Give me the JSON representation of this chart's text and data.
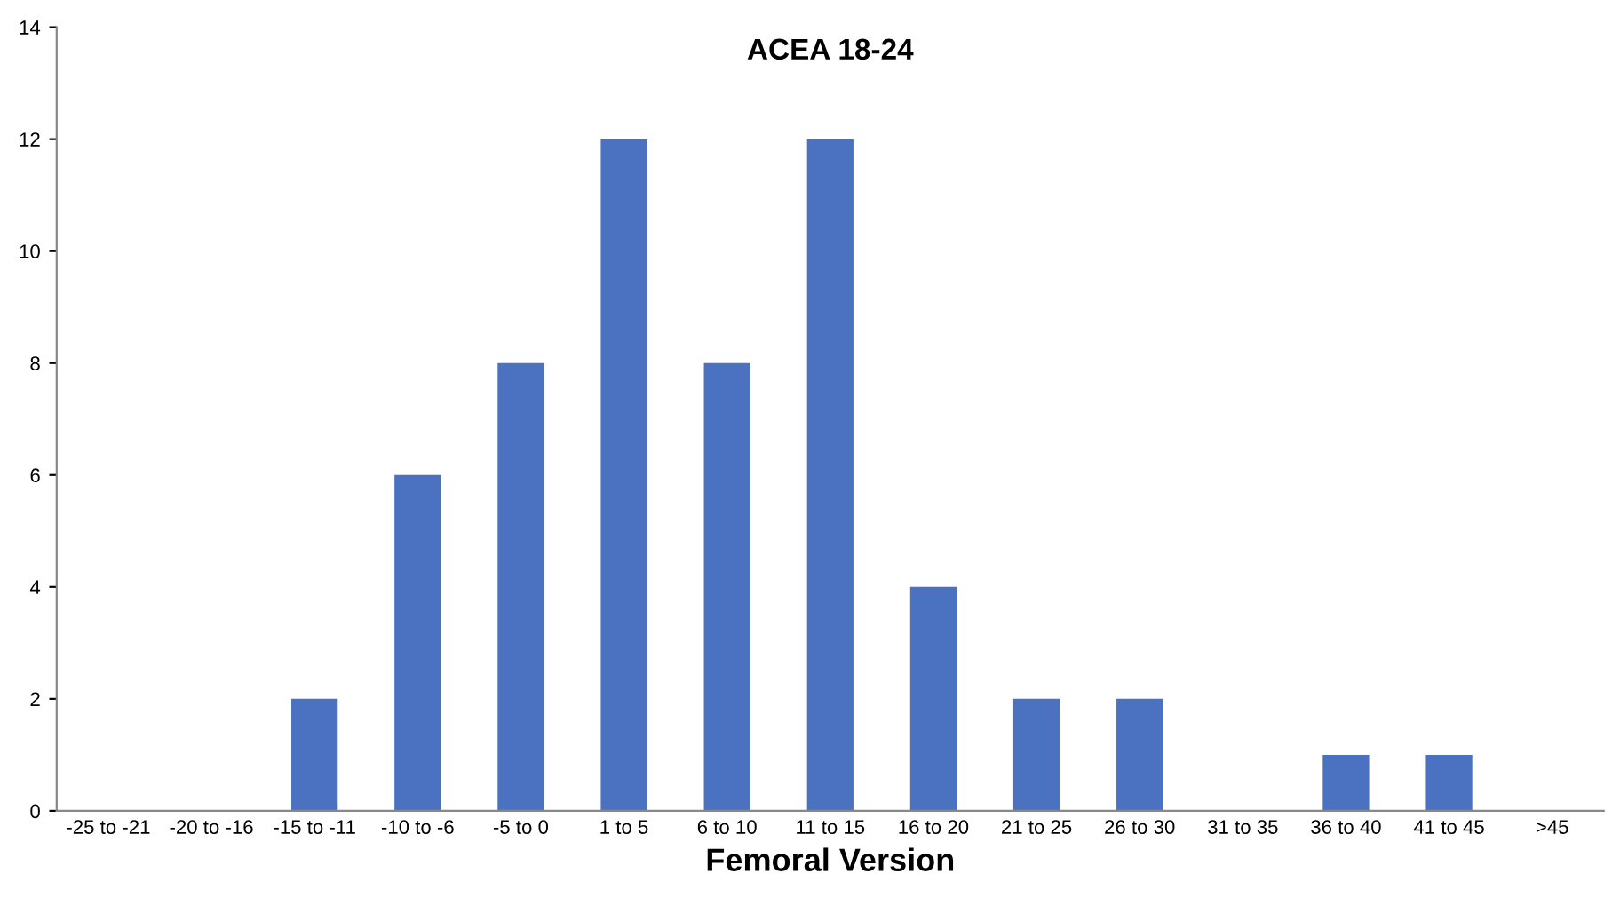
{
  "chart_data": {
    "type": "bar",
    "title": "ACEA 18-24",
    "xlabel": "Femoral Version",
    "categories": [
      "-25 to -21",
      "-20 to -16",
      "-15 to -11",
      "-10 to -6",
      "-5 to 0",
      "1 to 5",
      "6 to 10",
      "11 to 15",
      "16 to 20",
      "21 to 25",
      "26 to 30",
      "31 to 35",
      "36 to 40",
      "41 to 45",
      ">45"
    ],
    "values": [
      0,
      0,
      2,
      6,
      8,
      12,
      8,
      12,
      4,
      2,
      2,
      0,
      1,
      1,
      0
    ],
    "color": "#4a72c0",
    "ylim": [
      0,
      14
    ],
    "yticks": [
      0,
      2,
      4,
      6,
      8,
      10,
      12,
      14
    ],
    "grid": false
  }
}
